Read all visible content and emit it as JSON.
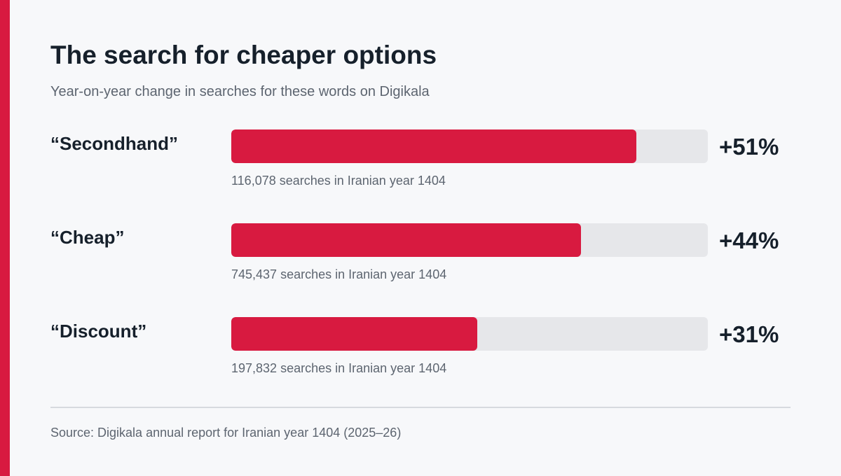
{
  "title": "The search for cheaper options",
  "subtitle": "Year-on-year change in searches for these words on Digikala",
  "source": "Source: Digikala annual report for Iranian year 1404 (2025–26)",
  "colors": {
    "accent": "#d81a40",
    "track": "#e6e7ea",
    "background": "#f7f8fa",
    "text": "#16202b",
    "muted": "#5d6570"
  },
  "chart_data": {
    "type": "bar",
    "orientation": "horizontal",
    "categories": [
      "“Secondhand”",
      "“Cheap”",
      "“Discount”"
    ],
    "values": [
      51,
      44,
      31
    ],
    "value_labels": [
      "+51%",
      "+44%",
      "+31%"
    ],
    "notes": [
      "116,078 searches in Iranian year 1404",
      "745,437 searches in Iranian year 1404",
      "197,832 searches in Iranian year 1404"
    ],
    "xlim": [
      0,
      60
    ],
    "grid": false,
    "legend": "none"
  }
}
